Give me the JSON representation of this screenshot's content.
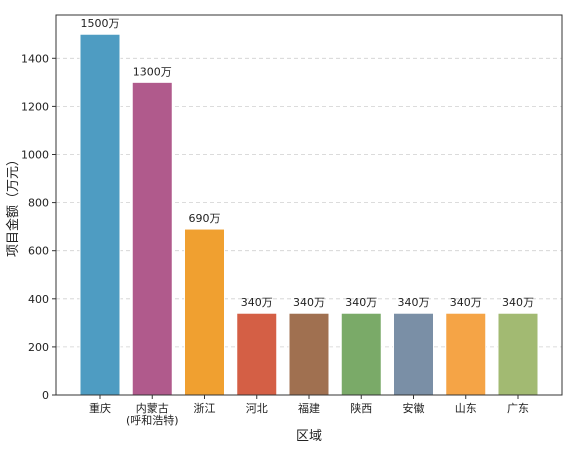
{
  "chart_data": {
    "type": "bar",
    "title": "",
    "xlabel": "区域",
    "ylabel": "项目金额（万元）",
    "ylim": [
      0,
      1580
    ],
    "yticks": [
      0,
      200,
      400,
      600,
      800,
      1000,
      1200,
      1400
    ],
    "grid": "horizontal dashed",
    "categories": [
      [
        "重庆"
      ],
      [
        "内蒙古",
        "(呼和浩特)"
      ],
      [
        "浙江"
      ],
      [
        "河北"
      ],
      [
        "福建"
      ],
      [
        "陕西"
      ],
      [
        "安徽"
      ],
      [
        "山东"
      ],
      [
        "广东"
      ]
    ],
    "values": [
      1500,
      1300,
      690,
      340,
      340,
      340,
      340,
      340,
      340
    ],
    "value_labels": [
      "1500万",
      "1300万",
      "690万",
      "340万",
      "340万",
      "340万",
      "340万",
      "340万",
      "340万"
    ],
    "colors": [
      "#4e9cc2",
      "#b05a8c",
      "#f0a030",
      "#d45f45",
      "#a07050",
      "#7aaa68",
      "#7a8fa6",
      "#f5a446",
      "#a2ba72"
    ]
  }
}
